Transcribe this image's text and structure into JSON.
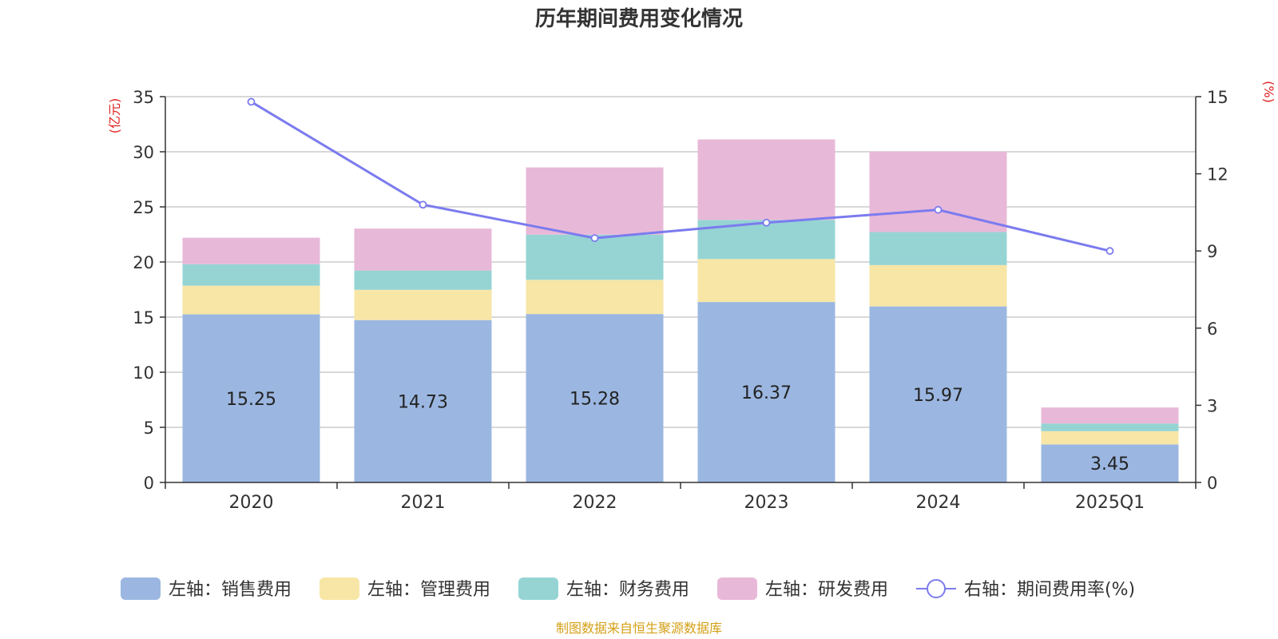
{
  "chart_data": {
    "type": "bar",
    "stacked": true,
    "title": "历年期间费用变化情况",
    "left_unit": "(亿元)",
    "right_unit": "(%)",
    "categories": [
      "2020",
      "2021",
      "2022",
      "2023",
      "2024",
      "2025Q1"
    ],
    "left_axis": {
      "min": 0,
      "max": 35,
      "ticks": [
        "0",
        "5",
        "10",
        "15",
        "20",
        "25",
        "30",
        "35"
      ]
    },
    "right_axis": {
      "min": 0,
      "max": 15,
      "ticks": [
        "0",
        "3",
        "6",
        "9",
        "12",
        "15"
      ]
    },
    "series": [
      {
        "name": "左轴：销售费用",
        "axis": "left",
        "color": "#9bb7e1",
        "values": [
          15.25,
          14.73,
          15.28,
          16.37,
          15.97,
          3.45
        ],
        "labels": [
          "15.25",
          "14.73",
          "15.28",
          "16.37",
          "15.97",
          "3.45"
        ]
      },
      {
        "name": "左轴：管理费用",
        "axis": "left",
        "color": "#f7e6a6",
        "values": [
          2.6,
          2.75,
          3.1,
          3.9,
          3.75,
          1.2
        ]
      },
      {
        "name": "左轴：财务费用",
        "axis": "left",
        "color": "#96d4d4",
        "values": [
          1.95,
          1.75,
          4.1,
          3.55,
          3.0,
          0.7
        ]
      },
      {
        "name": "左轴：研发费用",
        "axis": "left",
        "color": "#e8b8d8",
        "values": [
          2.4,
          3.8,
          6.1,
          7.3,
          7.3,
          1.45
        ]
      },
      {
        "name": "右轴：期间费用率(%)",
        "axis": "right",
        "type": "line",
        "color": "#7b7bef",
        "values": [
          14.8,
          10.8,
          9.5,
          10.1,
          10.6,
          9.0
        ]
      }
    ],
    "legend_position": "bottom",
    "grid": true
  },
  "source_text": "制图数据来自恒生聚源数据库",
  "colors": {
    "axis_unit": "#e02020",
    "source": "#d4a017",
    "grid": "#cccccc",
    "axis": "#333333"
  }
}
